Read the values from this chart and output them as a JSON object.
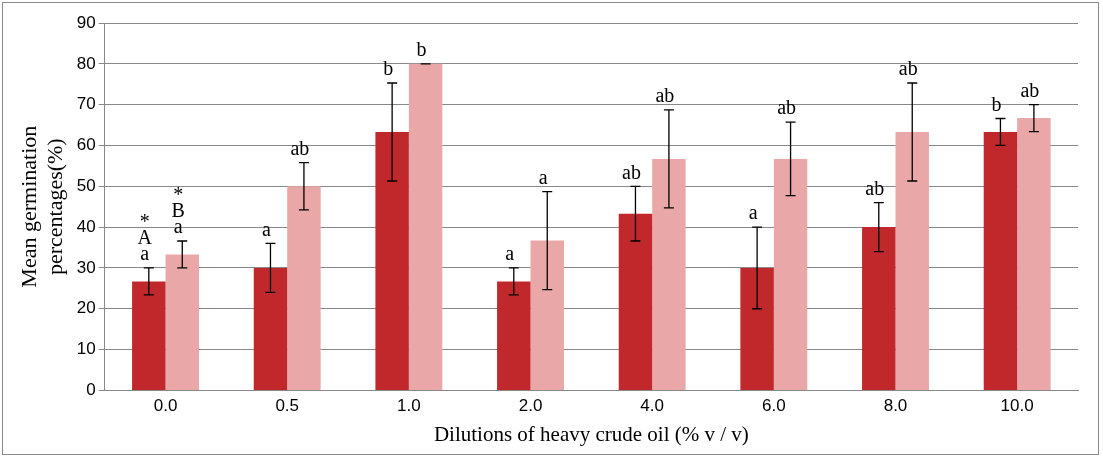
{
  "chart_data": {
    "type": "bar",
    "xlabel": "Dilutions of heavy crude oil (% v / v)",
    "ylabel": "Mean germination percentages(%)",
    "categories": [
      "0.0",
      "0.5",
      "1.0",
      "2.0",
      "4.0",
      "6.0",
      "8.0",
      "10.0"
    ],
    "series": [
      {
        "color": "#c0282c",
        "values": [
          26.7,
          30,
          63.3,
          26.7,
          43.3,
          30,
          40,
          63.3
        ],
        "errors": [
          3.3,
          6,
          12,
          3.3,
          6.7,
          10,
          6,
          3.3
        ]
      },
      {
        "color": "#e9a7a7",
        "values": [
          33.3,
          50,
          80,
          36.7,
          56.7,
          56.7,
          63.3,
          66.7
        ],
        "errors": [
          3.3,
          5.8,
          0,
          12,
          12,
          9,
          12,
          3.3
        ]
      }
    ],
    "ylim": [
      0,
      90
    ],
    "yticks": [
      0,
      10,
      20,
      30,
      40,
      50,
      60,
      70,
      80,
      90
    ],
    "grid": "y",
    "legend": false,
    "annotations": [
      {
        "text": "a",
        "x": "0.0",
        "y": 26.7
      },
      {
        "text": "a",
        "x": "0.0",
        "y": 33.3
      },
      {
        "text": "A",
        "x": "0.0",
        "y": 26.7
      },
      {
        "text": "B",
        "x": "0.0",
        "y": 33.3
      },
      {
        "text": "*",
        "x": "0.0",
        "y": 26.7
      },
      {
        "text": "*",
        "x": "0.0",
        "y": 33.3
      },
      {
        "text": "a",
        "x": "0.5",
        "y": 30
      },
      {
        "text": "ab",
        "x": "0.5",
        "y": 50
      },
      {
        "text": "b",
        "x": "1.0",
        "y": 63.3
      },
      {
        "text": "b",
        "x": "1.0",
        "y": 80
      },
      {
        "text": "a",
        "x": "2.0",
        "y": 26.7
      },
      {
        "text": "a",
        "x": "2.0",
        "y": 36.7
      },
      {
        "text": "ab",
        "x": "4.0",
        "y": 43.3
      },
      {
        "text": "ab",
        "x": "4.0",
        "y": 56.7
      },
      {
        "text": "a",
        "x": "6.0",
        "y": 30
      },
      {
        "text": "ab",
        "x": "6.0",
        "y": 56.7
      },
      {
        "text": "ab",
        "x": "8.0",
        "y": 40
      },
      {
        "text": "ab",
        "x": "8.0",
        "y": 63.3
      },
      {
        "text": "b",
        "x": "10.0",
        "y": 63.3
      },
      {
        "text": "ab",
        "x": "10.0",
        "y": 66.7
      }
    ]
  }
}
